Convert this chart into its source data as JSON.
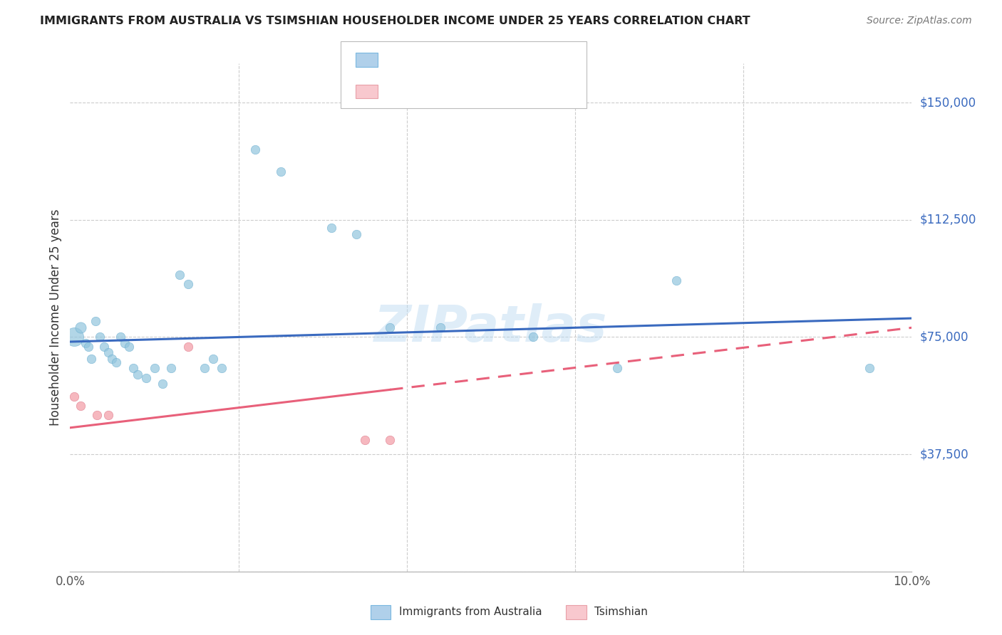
{
  "title": "IMMIGRANTS FROM AUSTRALIA VS TSIMSHIAN HOUSEHOLDER INCOME UNDER 25 YEARS CORRELATION CHART",
  "source": "Source: ZipAtlas.com",
  "ylabel": "Householder Income Under 25 years",
  "xlim": [
    0.0,
    10.0
  ],
  "ylim": [
    0,
    162500
  ],
  "yticks": [
    0,
    37500,
    75000,
    112500,
    150000
  ],
  "ytick_labels": [
    "",
    "$37,500",
    "$75,000",
    "$112,500",
    "$150,000"
  ],
  "blue_color": "#92c5de",
  "pink_color": "#f4a6b0",
  "line_blue": "#3a6abf",
  "line_pink": "#e8607a",
  "text_blue": "#3a6abf",
  "watermark": "ZIPatlas",
  "australia_points": [
    [
      0.05,
      75000,
      350
    ],
    [
      0.12,
      78000,
      120
    ],
    [
      0.18,
      73000,
      80
    ],
    [
      0.22,
      72000,
      80
    ],
    [
      0.25,
      68000,
      80
    ],
    [
      0.3,
      80000,
      80
    ],
    [
      0.35,
      75000,
      80
    ],
    [
      0.4,
      72000,
      80
    ],
    [
      0.45,
      70000,
      80
    ],
    [
      0.5,
      68000,
      80
    ],
    [
      0.55,
      67000,
      80
    ],
    [
      0.6,
      75000,
      80
    ],
    [
      0.65,
      73000,
      80
    ],
    [
      0.7,
      72000,
      80
    ],
    [
      0.75,
      65000,
      80
    ],
    [
      0.8,
      63000,
      80
    ],
    [
      0.9,
      62000,
      80
    ],
    [
      1.0,
      65000,
      80
    ],
    [
      1.1,
      60000,
      80
    ],
    [
      1.2,
      65000,
      80
    ],
    [
      1.3,
      95000,
      80
    ],
    [
      1.4,
      92000,
      80
    ],
    [
      1.6,
      65000,
      80
    ],
    [
      1.7,
      68000,
      80
    ],
    [
      1.8,
      65000,
      80
    ],
    [
      2.2,
      135000,
      80
    ],
    [
      2.5,
      128000,
      80
    ],
    [
      3.1,
      110000,
      80
    ],
    [
      3.4,
      108000,
      80
    ],
    [
      3.8,
      78000,
      80
    ],
    [
      4.4,
      78000,
      80
    ],
    [
      5.5,
      75000,
      80
    ],
    [
      6.5,
      65000,
      80
    ],
    [
      7.2,
      93000,
      80
    ],
    [
      9.5,
      65000,
      80
    ]
  ],
  "tsimshian_points": [
    [
      0.05,
      56000,
      80
    ],
    [
      0.12,
      53000,
      80
    ],
    [
      0.32,
      50000,
      80
    ],
    [
      0.45,
      50000,
      80
    ],
    [
      1.4,
      72000,
      80
    ],
    [
      3.8,
      42000,
      80
    ],
    [
      3.5,
      42000,
      80
    ]
  ],
  "australia_trendline": [
    0.0,
    10.0,
    73500,
    81000
  ],
  "tsimshian_trendline": [
    0.0,
    10.0,
    46000,
    78000
  ],
  "tsimshian_dashed_start": 3.8
}
